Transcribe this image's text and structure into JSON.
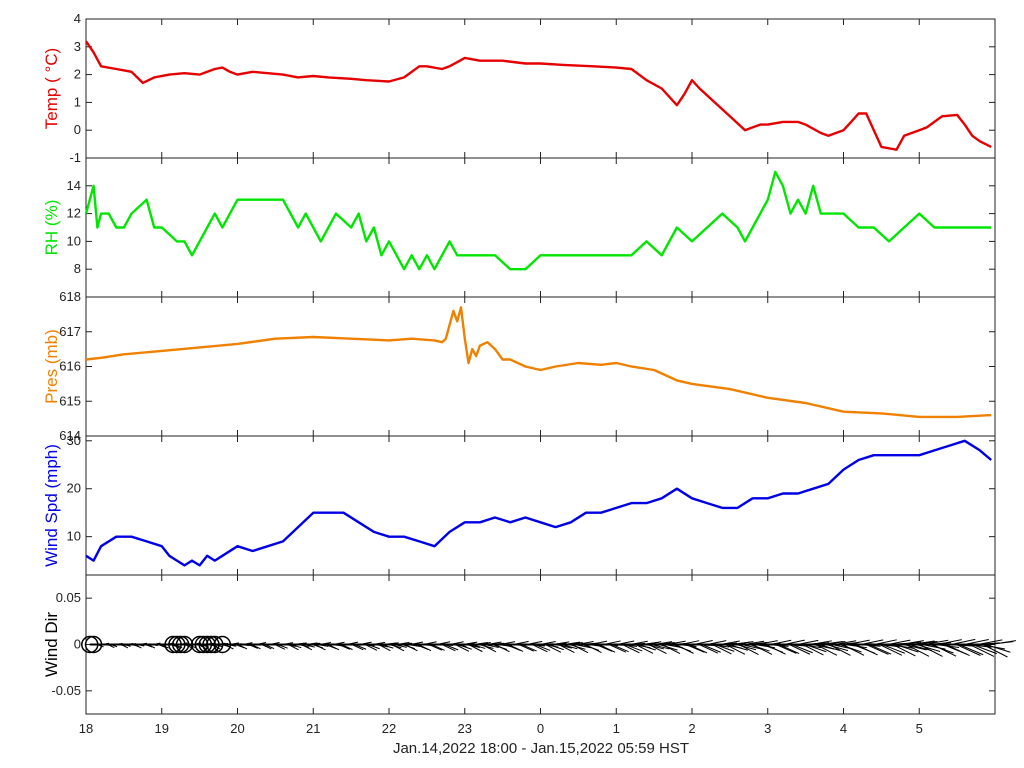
{
  "chart_data": [
    {
      "type": "line",
      "ylabel": "Temp ( °C)",
      "color": "#e60000",
      "ylim": [
        -1,
        4
      ],
      "yticks": [
        "-1",
        "0",
        "1",
        "2",
        "3",
        "4"
      ],
      "series": [
        {
          "x": [
            18.0,
            18.1,
            18.2,
            18.4,
            18.6,
            18.75,
            18.9,
            19.1,
            19.3,
            19.5,
            19.7,
            19.8,
            19.9,
            20.0,
            20.2,
            20.4,
            20.6,
            20.8,
            21.0,
            21.2,
            21.5,
            21.7,
            22.0,
            22.2,
            22.4,
            22.5,
            22.7,
            22.8,
            23.0,
            23.2,
            23.5,
            23.8,
            24.0,
            24.3,
            24.7,
            25.0,
            25.2,
            25.4,
            25.6,
            25.8,
            25.9,
            26.0,
            26.1,
            26.3,
            26.5,
            26.7,
            26.8,
            26.9,
            27.0,
            27.2,
            27.4,
            27.5,
            27.7,
            27.8,
            27.9,
            28.0,
            28.1,
            28.2,
            28.3,
            28.4,
            28.5,
            28.7,
            28.8,
            29.0,
            29.1,
            29.3,
            29.5,
            29.6,
            29.7,
            29.8,
            29.95
          ],
          "y": [
            3.2,
            2.8,
            2.3,
            2.2,
            2.1,
            1.7,
            1.9,
            2.0,
            2.05,
            2.0,
            2.2,
            2.25,
            2.1,
            2.0,
            2.1,
            2.05,
            2.0,
            1.9,
            1.95,
            1.9,
            1.85,
            1.8,
            1.75,
            1.9,
            2.3,
            2.3,
            2.2,
            2.3,
            2.6,
            2.5,
            2.5,
            2.4,
            2.4,
            2.35,
            2.3,
            2.25,
            2.2,
            1.8,
            1.5,
            0.9,
            1.3,
            1.8,
            1.5,
            1.0,
            0.5,
            0.0,
            0.1,
            0.2,
            0.2,
            0.3,
            0.3,
            0.2,
            -0.1,
            -0.2,
            -0.1,
            0.0,
            0.3,
            0.6,
            0.6,
            0.0,
            -0.6,
            -0.7,
            -0.2,
            0.0,
            0.1,
            0.5,
            0.55,
            0.2,
            -0.2,
            -0.4,
            -0.6
          ]
        }
      ]
    },
    {
      "type": "line",
      "ylabel": "RH (%)",
      "color": "#00e600",
      "ylim": [
        6,
        16
      ],
      "yticks": [
        "8",
        "10",
        "12",
        "14"
      ],
      "series": [
        {
          "x": [
            18.0,
            18.05,
            18.1,
            18.15,
            18.2,
            18.3,
            18.4,
            18.5,
            18.6,
            18.8,
            18.9,
            19.0,
            19.2,
            19.3,
            19.4,
            19.5,
            19.6,
            19.7,
            19.8,
            19.9,
            20.0,
            20.2,
            20.4,
            20.6,
            20.7,
            20.8,
            20.9,
            21.0,
            21.1,
            21.2,
            21.3,
            21.5,
            21.6,
            21.7,
            21.8,
            21.9,
            22.0,
            22.1,
            22.2,
            22.3,
            22.4,
            22.5,
            22.6,
            22.7,
            22.8,
            22.9,
            23.0,
            23.2,
            23.4,
            23.6,
            23.8,
            24.0,
            24.2,
            24.4,
            24.6,
            24.8,
            25.0,
            25.2,
            25.4,
            25.6,
            25.8,
            26.0,
            26.2,
            26.4,
            26.6,
            26.7,
            26.8,
            26.9,
            27.0,
            27.1,
            27.2,
            27.3,
            27.4,
            27.5,
            27.6,
            27.7,
            27.8,
            28.0,
            28.2,
            28.4,
            28.6,
            28.8,
            29.0,
            29.2,
            29.5,
            29.8,
            29.95
          ],
          "y": [
            12,
            13,
            14,
            11,
            12,
            12,
            11,
            11,
            12,
            13,
            11,
            11,
            10,
            10,
            9,
            10,
            11,
            12,
            11,
            12,
            13,
            13,
            13,
            13,
            12,
            11,
            12,
            11,
            10,
            11,
            12,
            11,
            12,
            10,
            11,
            9,
            10,
            9,
            8,
            9,
            8,
            9,
            8,
            9,
            10,
            9,
            9,
            9,
            9,
            8,
            8,
            9,
            9,
            9,
            9,
            9,
            9,
            9,
            10,
            9,
            11,
            10,
            11,
            12,
            11,
            10,
            11,
            12,
            13,
            15,
            14,
            12,
            13,
            12,
            14,
            12,
            12,
            12,
            11,
            11,
            10,
            11,
            12,
            11,
            11,
            11,
            11
          ]
        }
      ]
    },
    {
      "type": "line",
      "ylabel": "Pres (mb)",
      "color": "#f08000",
      "ylim": [
        614,
        618
      ],
      "yticks": [
        "614",
        "615",
        "616",
        "617",
        "618"
      ],
      "series": [
        {
          "x": [
            18.0,
            18.2,
            18.5,
            19.0,
            19.5,
            20.0,
            20.5,
            21.0,
            21.5,
            22.0,
            22.3,
            22.6,
            22.7,
            22.75,
            22.8,
            22.85,
            22.9,
            22.95,
            23.0,
            23.05,
            23.1,
            23.15,
            23.2,
            23.3,
            23.4,
            23.5,
            23.6,
            23.8,
            24.0,
            24.2,
            24.5,
            24.8,
            25.0,
            25.2,
            25.5,
            25.8,
            26.0,
            26.5,
            27.0,
            27.5,
            28.0,
            28.5,
            29.0,
            29.5,
            29.95
          ],
          "y": [
            616.2,
            616.25,
            616.35,
            616.45,
            616.55,
            616.65,
            616.8,
            616.85,
            616.8,
            616.75,
            616.8,
            616.75,
            616.7,
            616.8,
            617.2,
            617.6,
            617.3,
            617.7,
            616.8,
            616.1,
            616.5,
            616.3,
            616.6,
            616.7,
            616.5,
            616.2,
            616.2,
            616.0,
            615.9,
            616.0,
            616.1,
            616.05,
            616.1,
            616.0,
            615.9,
            615.6,
            615.5,
            615.35,
            615.1,
            614.95,
            614.7,
            614.65,
            614.55,
            614.55,
            614.6
          ]
        }
      ]
    },
    {
      "type": "line",
      "ylabel": "Wind Spd (mph)",
      "color": "#0000e6",
      "ylim": [
        2,
        31
      ],
      "yticks": [
        "10",
        "20",
        "30"
      ],
      "series": [
        {
          "x": [
            18.0,
            18.1,
            18.2,
            18.4,
            18.6,
            18.8,
            19.0,
            19.1,
            19.2,
            19.3,
            19.4,
            19.5,
            19.6,
            19.7,
            19.8,
            20.0,
            20.2,
            20.4,
            20.6,
            20.8,
            21.0,
            21.2,
            21.4,
            21.6,
            21.8,
            22.0,
            22.2,
            22.4,
            22.6,
            22.8,
            23.0,
            23.2,
            23.4,
            23.6,
            23.8,
            24.0,
            24.2,
            24.4,
            24.6,
            24.8,
            25.0,
            25.2,
            25.4,
            25.6,
            25.8,
            26.0,
            26.2,
            26.4,
            26.6,
            26.8,
            27.0,
            27.2,
            27.4,
            27.6,
            27.8,
            28.0,
            28.2,
            28.4,
            28.6,
            28.8,
            29.0,
            29.2,
            29.4,
            29.6,
            29.8,
            29.95
          ],
          "y": [
            6,
            5,
            8,
            10,
            10,
            9,
            8,
            6,
            5,
            4,
            5,
            4,
            6,
            5,
            6,
            8,
            7,
            8,
            9,
            12,
            15,
            15,
            15,
            13,
            11,
            10,
            10,
            9,
            8,
            11,
            13,
            13,
            14,
            13,
            14,
            13,
            12,
            13,
            15,
            15,
            16,
            17,
            17,
            18,
            20,
            18,
            17,
            16,
            16,
            18,
            18,
            19,
            19,
            20,
            21,
            24,
            26,
            27,
            27,
            27,
            27,
            28,
            29,
            30,
            28,
            26
          ]
        }
      ]
    },
    {
      "type": "line",
      "ylabel": "Wind Dir",
      "color": "#000000",
      "ylim": [
        -0.075,
        0.075
      ],
      "yticks": [
        "-0.05",
        "0",
        "0.05"
      ],
      "circles_x": [
        18.05,
        18.1,
        19.15,
        19.2,
        19.25,
        19.3,
        19.5,
        19.55,
        19.6,
        19.65,
        19.7,
        19.8
      ]
    }
  ],
  "xaxis": {
    "ticks": [
      "18",
      "19",
      "20",
      "21",
      "22",
      "23",
      "0",
      "1",
      "2",
      "3",
      "4",
      "5"
    ],
    "label": "Jan.14,2022 18:00 - Jan.15,2022 05:59 HST"
  }
}
